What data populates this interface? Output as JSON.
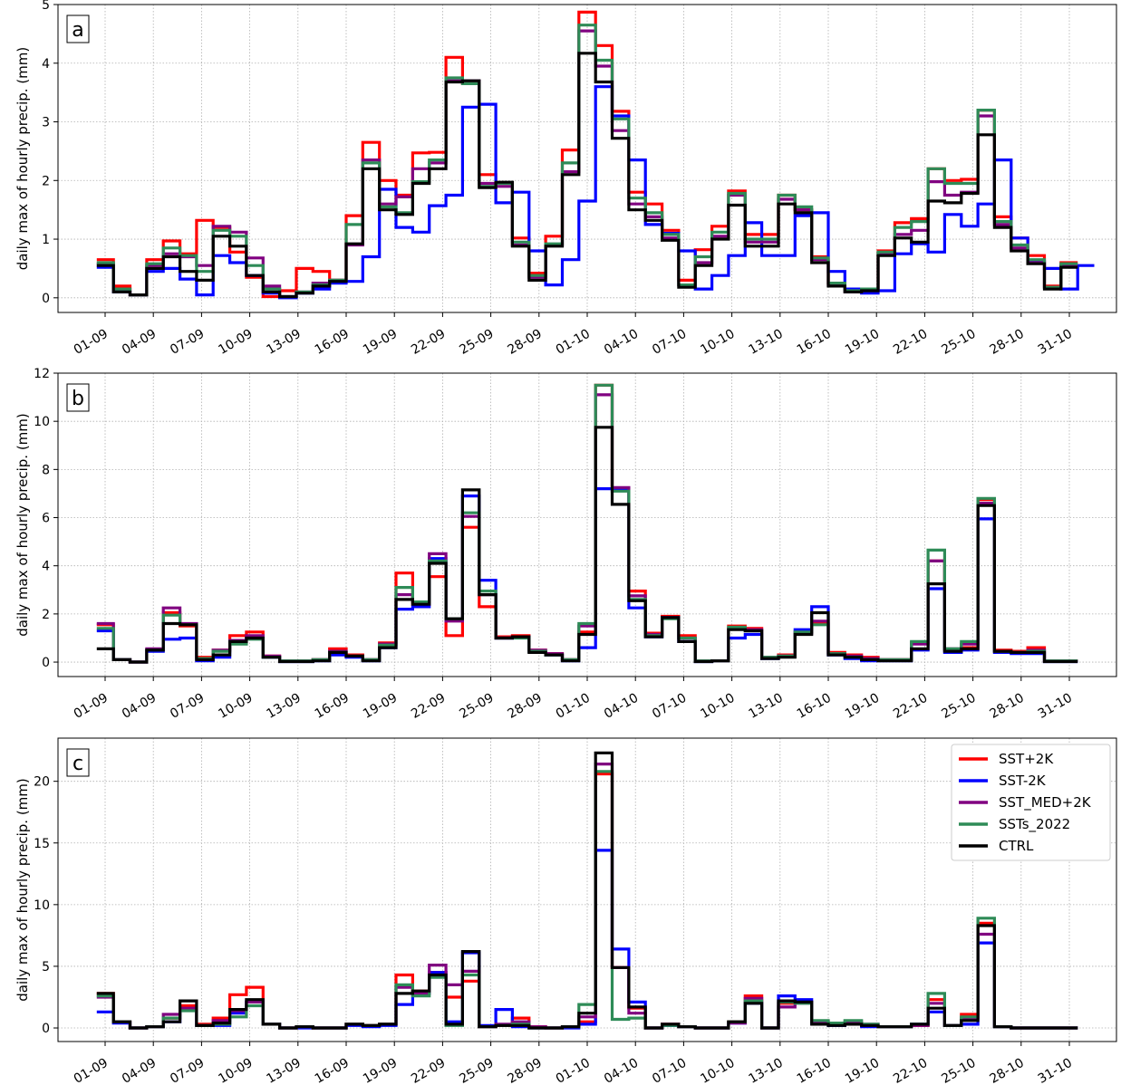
{
  "chart_data": [
    {
      "type": "line",
      "step": true,
      "panel_label": "a",
      "ylabel": "daily max of hourly precip. (mm)",
      "ylim": [
        -0.25,
        5.0
      ],
      "yticks": [
        0,
        1,
        2,
        3,
        4,
        5
      ],
      "xtick_labels": [
        "01-09",
        "04-09",
        "07-09",
        "10-09",
        "13-09",
        "16-09",
        "19-09",
        "22-09",
        "25-09",
        "28-09",
        "01-10",
        "04-10",
        "07-10",
        "10-10",
        "13-10",
        "16-10",
        "19-10",
        "22-10",
        "25-10",
        "28-10",
        "31-10"
      ],
      "grid": true,
      "series": [
        {
          "name": "SST+2K",
          "color": "#ff0000",
          "values": [
            0.65,
            0.2,
            0.05,
            0.65,
            0.97,
            0.75,
            1.32,
            1.2,
            0.78,
            0.35,
            0.02,
            0.12,
            0.5,
            0.45,
            0.3,
            1.4,
            2.65,
            2.0,
            1.75,
            2.47,
            2.48,
            4.1,
            3.65,
            2.1,
            1.95,
            1.02,
            0.42,
            1.05,
            2.52,
            4.87,
            4.3,
            3.18,
            1.8,
            1.6,
            1.15,
            0.3,
            0.82,
            1.22,
            1.82,
            1.08,
            1.08,
            1.75,
            1.5,
            0.7,
            0.25,
            0.12,
            0.15,
            0.8,
            1.28,
            1.35,
            2.2,
            2.0,
            2.02,
            3.2,
            1.38,
            1.02,
            0.72,
            0.2,
            0.6
          ]
        },
        {
          "name": "SST-2K",
          "color": "#0000ff",
          "values": [
            0.52,
            0.1,
            0.05,
            0.45,
            0.5,
            0.32,
            0.05,
            0.72,
            0.6,
            0.38,
            0.08,
            0.0,
            0.08,
            0.15,
            0.25,
            0.28,
            0.7,
            1.85,
            1.2,
            1.12,
            1.57,
            1.75,
            3.25,
            3.3,
            1.62,
            1.8,
            0.8,
            0.22,
            0.65,
            1.65,
            3.6,
            3.1,
            2.35,
            1.25,
            1.1,
            0.8,
            0.15,
            0.38,
            0.72,
            1.28,
            0.72,
            0.72,
            1.4,
            1.45,
            0.45,
            0.15,
            0.08,
            0.12,
            0.75,
            0.92,
            0.78,
            1.42,
            1.22,
            1.6,
            2.35,
            1.02,
            0.62,
            0.5,
            0.15,
            0.55
          ]
        },
        {
          "name": "SST_MED+2K",
          "color": "#800080",
          "values": [
            0.58,
            0.15,
            0.05,
            0.55,
            0.75,
            0.7,
            0.55,
            1.22,
            1.12,
            0.68,
            0.2,
            0.02,
            0.1,
            0.25,
            0.3,
            0.9,
            2.35,
            1.6,
            1.72,
            2.2,
            2.3,
            3.7,
            3.7,
            1.95,
            1.9,
            0.9,
            0.35,
            0.9,
            2.15,
            4.55,
            3.95,
            2.85,
            1.6,
            1.38,
            1.02,
            0.22,
            0.6,
            1.05,
            1.75,
            0.95,
            0.95,
            1.68,
            1.5,
            0.65,
            0.22,
            0.1,
            0.12,
            0.75,
            1.08,
            1.15,
            1.98,
            1.75,
            1.8,
            3.1,
            1.25,
            0.85,
            0.6,
            0.18,
            0.55
          ]
        },
        {
          "name": "SSTs_2022",
          "color": "#2e8b57",
          "values": [
            0.6,
            0.15,
            0.05,
            0.58,
            0.85,
            0.72,
            0.45,
            1.15,
            1.05,
            0.55,
            0.15,
            0.02,
            0.1,
            0.22,
            0.3,
            1.25,
            2.3,
            1.55,
            1.45,
            1.98,
            2.35,
            3.75,
            3.65,
            1.9,
            1.95,
            0.95,
            0.38,
            0.92,
            2.3,
            4.65,
            4.05,
            3.05,
            1.7,
            1.45,
            1.08,
            0.22,
            0.7,
            1.12,
            1.78,
            1.0,
            1.0,
            1.75,
            1.55,
            0.68,
            0.25,
            0.12,
            0.15,
            0.78,
            1.2,
            1.3,
            2.2,
            1.95,
            1.95,
            3.2,
            1.3,
            0.9,
            0.65,
            0.18,
            0.58
          ]
        },
        {
          "name": "CTRL",
          "color": "#000000",
          "values": [
            0.55,
            0.1,
            0.05,
            0.5,
            0.7,
            0.45,
            0.3,
            1.05,
            0.88,
            0.38,
            0.1,
            0.02,
            0.08,
            0.2,
            0.28,
            0.92,
            2.2,
            1.5,
            1.42,
            1.95,
            2.2,
            3.68,
            3.7,
            1.88,
            1.97,
            0.88,
            0.3,
            0.88,
            2.1,
            4.17,
            3.68,
            2.72,
            1.5,
            1.32,
            0.98,
            0.18,
            0.55,
            1.0,
            1.58,
            0.88,
            0.88,
            1.6,
            1.45,
            0.6,
            0.2,
            0.1,
            0.12,
            0.72,
            1.02,
            0.95,
            1.65,
            1.62,
            1.78,
            2.78,
            1.2,
            0.8,
            0.58,
            0.15,
            0.52
          ]
        }
      ]
    },
    {
      "type": "line",
      "step": true,
      "panel_label": "b",
      "ylabel": "daily max of hourly precip. (mm)",
      "ylim": [
        -0.6,
        12.0
      ],
      "yticks": [
        0,
        2,
        4,
        6,
        8,
        10,
        12
      ],
      "xtick_labels": [
        "01-09",
        "04-09",
        "07-09",
        "10-09",
        "13-09",
        "16-09",
        "19-09",
        "22-09",
        "25-09",
        "28-09",
        "01-10",
        "04-10",
        "07-10",
        "10-10",
        "13-10",
        "16-10",
        "19-10",
        "22-10",
        "25-10",
        "28-10",
        "31-10"
      ],
      "grid": true,
      "series": [
        {
          "name": "SST+2K",
          "color": "#ff0000",
          "values": [
            1.55,
            0.1,
            0.0,
            0.5,
            2.05,
            1.5,
            0.2,
            0.5,
            1.1,
            1.25,
            0.25,
            0.05,
            0.05,
            0.1,
            0.55,
            0.3,
            0.1,
            0.8,
            3.7,
            2.4,
            3.55,
            1.1,
            5.6,
            2.3,
            1.05,
            1.1,
            0.5,
            0.35,
            0.1,
            1.25,
            11.5,
            7.2,
            2.95,
            1.2,
            1.9,
            1.1,
            0.05,
            0.05,
            1.5,
            1.4,
            0.2,
            0.3,
            1.25,
            1.6,
            0.4,
            0.3,
            0.2,
            0.1,
            0.1,
            0.8,
            4.2,
            0.5,
            0.6,
            6.75,
            0.5,
            0.45,
            0.6,
            0.05,
            0.05
          ]
        },
        {
          "name": "SST-2K",
          "color": "#0000ff",
          "values": [
            1.3,
            0.1,
            0.0,
            0.45,
            0.95,
            1.0,
            0.05,
            0.2,
            0.85,
            1.0,
            0.2,
            0.02,
            0.02,
            0.05,
            0.3,
            0.2,
            0.05,
            0.6,
            2.2,
            2.3,
            4.3,
            1.75,
            6.9,
            3.4,
            1.0,
            1.05,
            0.45,
            0.3,
            0.05,
            0.6,
            7.2,
            7.15,
            2.25,
            1.05,
            1.85,
            0.85,
            0.02,
            0.05,
            1.0,
            1.15,
            0.15,
            0.25,
            1.35,
            2.3,
            0.3,
            0.15,
            0.05,
            0.05,
            0.05,
            0.5,
            3.05,
            0.4,
            0.5,
            5.95,
            0.4,
            0.35,
            0.35,
            0.02,
            0.02
          ]
        },
        {
          "name": "SST_MED+2K",
          "color": "#800080",
          "values": [
            1.6,
            0.1,
            0.0,
            0.55,
            2.25,
            1.6,
            0.15,
            0.5,
            0.9,
            1.1,
            0.25,
            0.05,
            0.05,
            0.1,
            0.45,
            0.25,
            0.1,
            0.75,
            2.8,
            2.5,
            4.5,
            1.7,
            6.05,
            2.8,
            1.0,
            1.05,
            0.5,
            0.35,
            0.1,
            1.5,
            11.1,
            7.25,
            2.75,
            1.15,
            1.85,
            1.0,
            0.05,
            0.05,
            1.4,
            1.35,
            0.2,
            0.25,
            1.2,
            1.7,
            0.35,
            0.25,
            0.15,
            0.1,
            0.1,
            0.75,
            4.2,
            0.55,
            0.75,
            6.6,
            0.45,
            0.4,
            0.5,
            0.05,
            0.05
          ]
        },
        {
          "name": "SSTs_2022",
          "color": "#2e8b57",
          "values": [
            1.4,
            0.1,
            0.0,
            0.5,
            1.95,
            1.55,
            0.15,
            0.45,
            0.75,
            0.95,
            0.2,
            0.05,
            0.05,
            0.1,
            0.4,
            0.25,
            0.1,
            0.7,
            3.1,
            2.5,
            4.2,
            1.8,
            6.2,
            2.95,
            1.0,
            1.0,
            0.45,
            0.3,
            0.1,
            1.6,
            11.5,
            7.1,
            2.6,
            1.1,
            1.8,
            1.0,
            0.05,
            0.05,
            1.45,
            1.3,
            0.2,
            0.25,
            1.25,
            1.55,
            0.35,
            0.2,
            0.1,
            0.1,
            0.1,
            0.85,
            4.65,
            0.55,
            0.85,
            6.8,
            0.45,
            0.4,
            0.45,
            0.05,
            0.05
          ]
        },
        {
          "name": "CTRL",
          "color": "#000000",
          "values": [
            0.55,
            0.1,
            0.0,
            0.5,
            1.6,
            1.55,
            0.1,
            0.3,
            0.85,
            1.0,
            0.2,
            0.02,
            0.02,
            0.05,
            0.4,
            0.25,
            0.05,
            0.6,
            2.6,
            2.4,
            4.1,
            1.8,
            7.15,
            2.8,
            1.0,
            1.05,
            0.4,
            0.3,
            0.05,
            1.15,
            9.75,
            6.55,
            2.55,
            1.05,
            1.85,
            0.85,
            0.02,
            0.05,
            1.35,
            1.3,
            0.15,
            0.2,
            1.15,
            2.05,
            0.3,
            0.2,
            0.1,
            0.05,
            0.05,
            0.55,
            3.25,
            0.45,
            0.55,
            6.5,
            0.45,
            0.4,
            0.4,
            0.02,
            0.02
          ]
        }
      ]
    },
    {
      "type": "line",
      "step": true,
      "panel_label": "c",
      "ylabel": "daily max of hourly precip. (mm)",
      "ylim": [
        -1.1,
        23.5
      ],
      "yticks": [
        0,
        5,
        10,
        15,
        20
      ],
      "xtick_labels": [
        "01-09",
        "04-09",
        "07-09",
        "10-09",
        "13-09",
        "16-09",
        "19-09",
        "22-09",
        "25-09",
        "28-09",
        "01-10",
        "04-10",
        "07-10",
        "10-10",
        "13-10",
        "16-10",
        "19-10",
        "22-10",
        "25-10",
        "28-10",
        "31-10"
      ],
      "grid": true,
      "legend": {
        "position": "top-right",
        "entries": [
          "SST+2K",
          "SST-2K",
          "SST_MED+2K",
          "SSTs_2022",
          "CTRL"
        ]
      },
      "series": [
        {
          "name": "SST+2K",
          "color": "#ff0000",
          "values": [
            2.8,
            0.5,
            0.0,
            0.1,
            0.8,
            1.8,
            0.3,
            0.8,
            2.7,
            3.3,
            0.3,
            0.0,
            0.1,
            0.0,
            0.0,
            0.3,
            0.2,
            0.3,
            4.3,
            3.0,
            4.5,
            2.5,
            3.8,
            0.1,
            0.2,
            0.8,
            0.1,
            0.0,
            0.1,
            0.5,
            20.6,
            4.9,
            1.6,
            0.0,
            0.3,
            0.1,
            0.0,
            0.0,
            0.5,
            2.6,
            0.0,
            2.0,
            2.1,
            0.5,
            0.3,
            0.4,
            0.2,
            0.1,
            0.1,
            0.2,
            2.3,
            0.2,
            1.1,
            8.5,
            0.1,
            0.0,
            0.0,
            0.0,
            0.0
          ]
        },
        {
          "name": "SST-2K",
          "color": "#0000ff",
          "values": [
            1.3,
            0.4,
            0.0,
            0.1,
            0.5,
            1.5,
            0.2,
            0.2,
            1.2,
            2.1,
            0.3,
            0.0,
            0.0,
            0.0,
            0.0,
            0.2,
            0.1,
            0.2,
            1.9,
            2.8,
            4.5,
            0.5,
            6.1,
            0.2,
            1.5,
            0.1,
            0.0,
            0.0,
            0.0,
            0.3,
            14.4,
            6.4,
            2.1,
            0.0,
            0.2,
            0.1,
            0.0,
            0.0,
            0.4,
            2.0,
            0.0,
            2.6,
            2.3,
            0.4,
            0.2,
            0.3,
            0.1,
            0.1,
            0.1,
            0.3,
            1.3,
            0.2,
            0.3,
            6.9,
            0.1,
            0.0,
            0.0,
            0.0,
            0.0
          ]
        },
        {
          "name": "SST_MED+2K",
          "color": "#800080",
          "values": [
            2.5,
            0.5,
            0.0,
            0.1,
            1.1,
            1.6,
            0.2,
            0.6,
            1.4,
            2.1,
            0.3,
            0.0,
            0.1,
            0.0,
            0.0,
            0.3,
            0.2,
            0.3,
            3.3,
            2.8,
            5.1,
            3.5,
            4.6,
            0.1,
            0.3,
            0.5,
            0.1,
            0.0,
            0.1,
            0.9,
            21.4,
            4.9,
            1.2,
            0.0,
            0.3,
            0.1,
            0.0,
            0.0,
            0.4,
            2.4,
            0.0,
            1.7,
            2.0,
            0.5,
            0.3,
            0.5,
            0.3,
            0.1,
            0.1,
            0.2,
            2.0,
            0.2,
            0.8,
            7.6,
            0.1,
            0.0,
            0.0,
            0.0,
            0.0
          ]
        },
        {
          "name": "SSTs_2022",
          "color": "#2e8b57",
          "values": [
            2.6,
            0.5,
            0.0,
            0.1,
            0.8,
            1.4,
            0.2,
            0.3,
            0.9,
            1.8,
            0.3,
            0.0,
            0.1,
            0.0,
            0.0,
            0.3,
            0.2,
            0.3,
            3.5,
            2.6,
            4.1,
            0.2,
            4.3,
            0.1,
            0.2,
            0.3,
            0.0,
            0.0,
            0.1,
            1.9,
            20.8,
            0.7,
            0.8,
            0.0,
            0.2,
            0.1,
            0.0,
            0.0,
            0.5,
            2.2,
            0.0,
            2.1,
            2.0,
            0.6,
            0.4,
            0.6,
            0.3,
            0.1,
            0.1,
            0.3,
            2.8,
            0.2,
            0.9,
            8.9,
            0.1,
            0.0,
            0.0,
            0.0,
            0.0
          ]
        },
        {
          "name": "CTRL",
          "color": "#000000",
          "values": [
            2.8,
            0.5,
            0.0,
            0.1,
            0.5,
            2.2,
            0.2,
            0.4,
            1.5,
            2.3,
            0.3,
            0.0,
            0.1,
            0.0,
            0.0,
            0.3,
            0.2,
            0.3,
            2.8,
            3.0,
            4.3,
            0.3,
            6.2,
            0.1,
            0.2,
            0.2,
            0.0,
            0.0,
            0.1,
            1.2,
            22.3,
            4.9,
            1.7,
            0.0,
            0.3,
            0.1,
            0.0,
            0.0,
            0.5,
            2.0,
            0.0,
            2.2,
            2.1,
            0.3,
            0.2,
            0.3,
            0.2,
            0.1,
            0.1,
            0.3,
            1.6,
            0.2,
            0.6,
            8.3,
            0.1,
            0.0,
            0.0,
            0.0,
            0.0
          ]
        }
      ]
    }
  ]
}
